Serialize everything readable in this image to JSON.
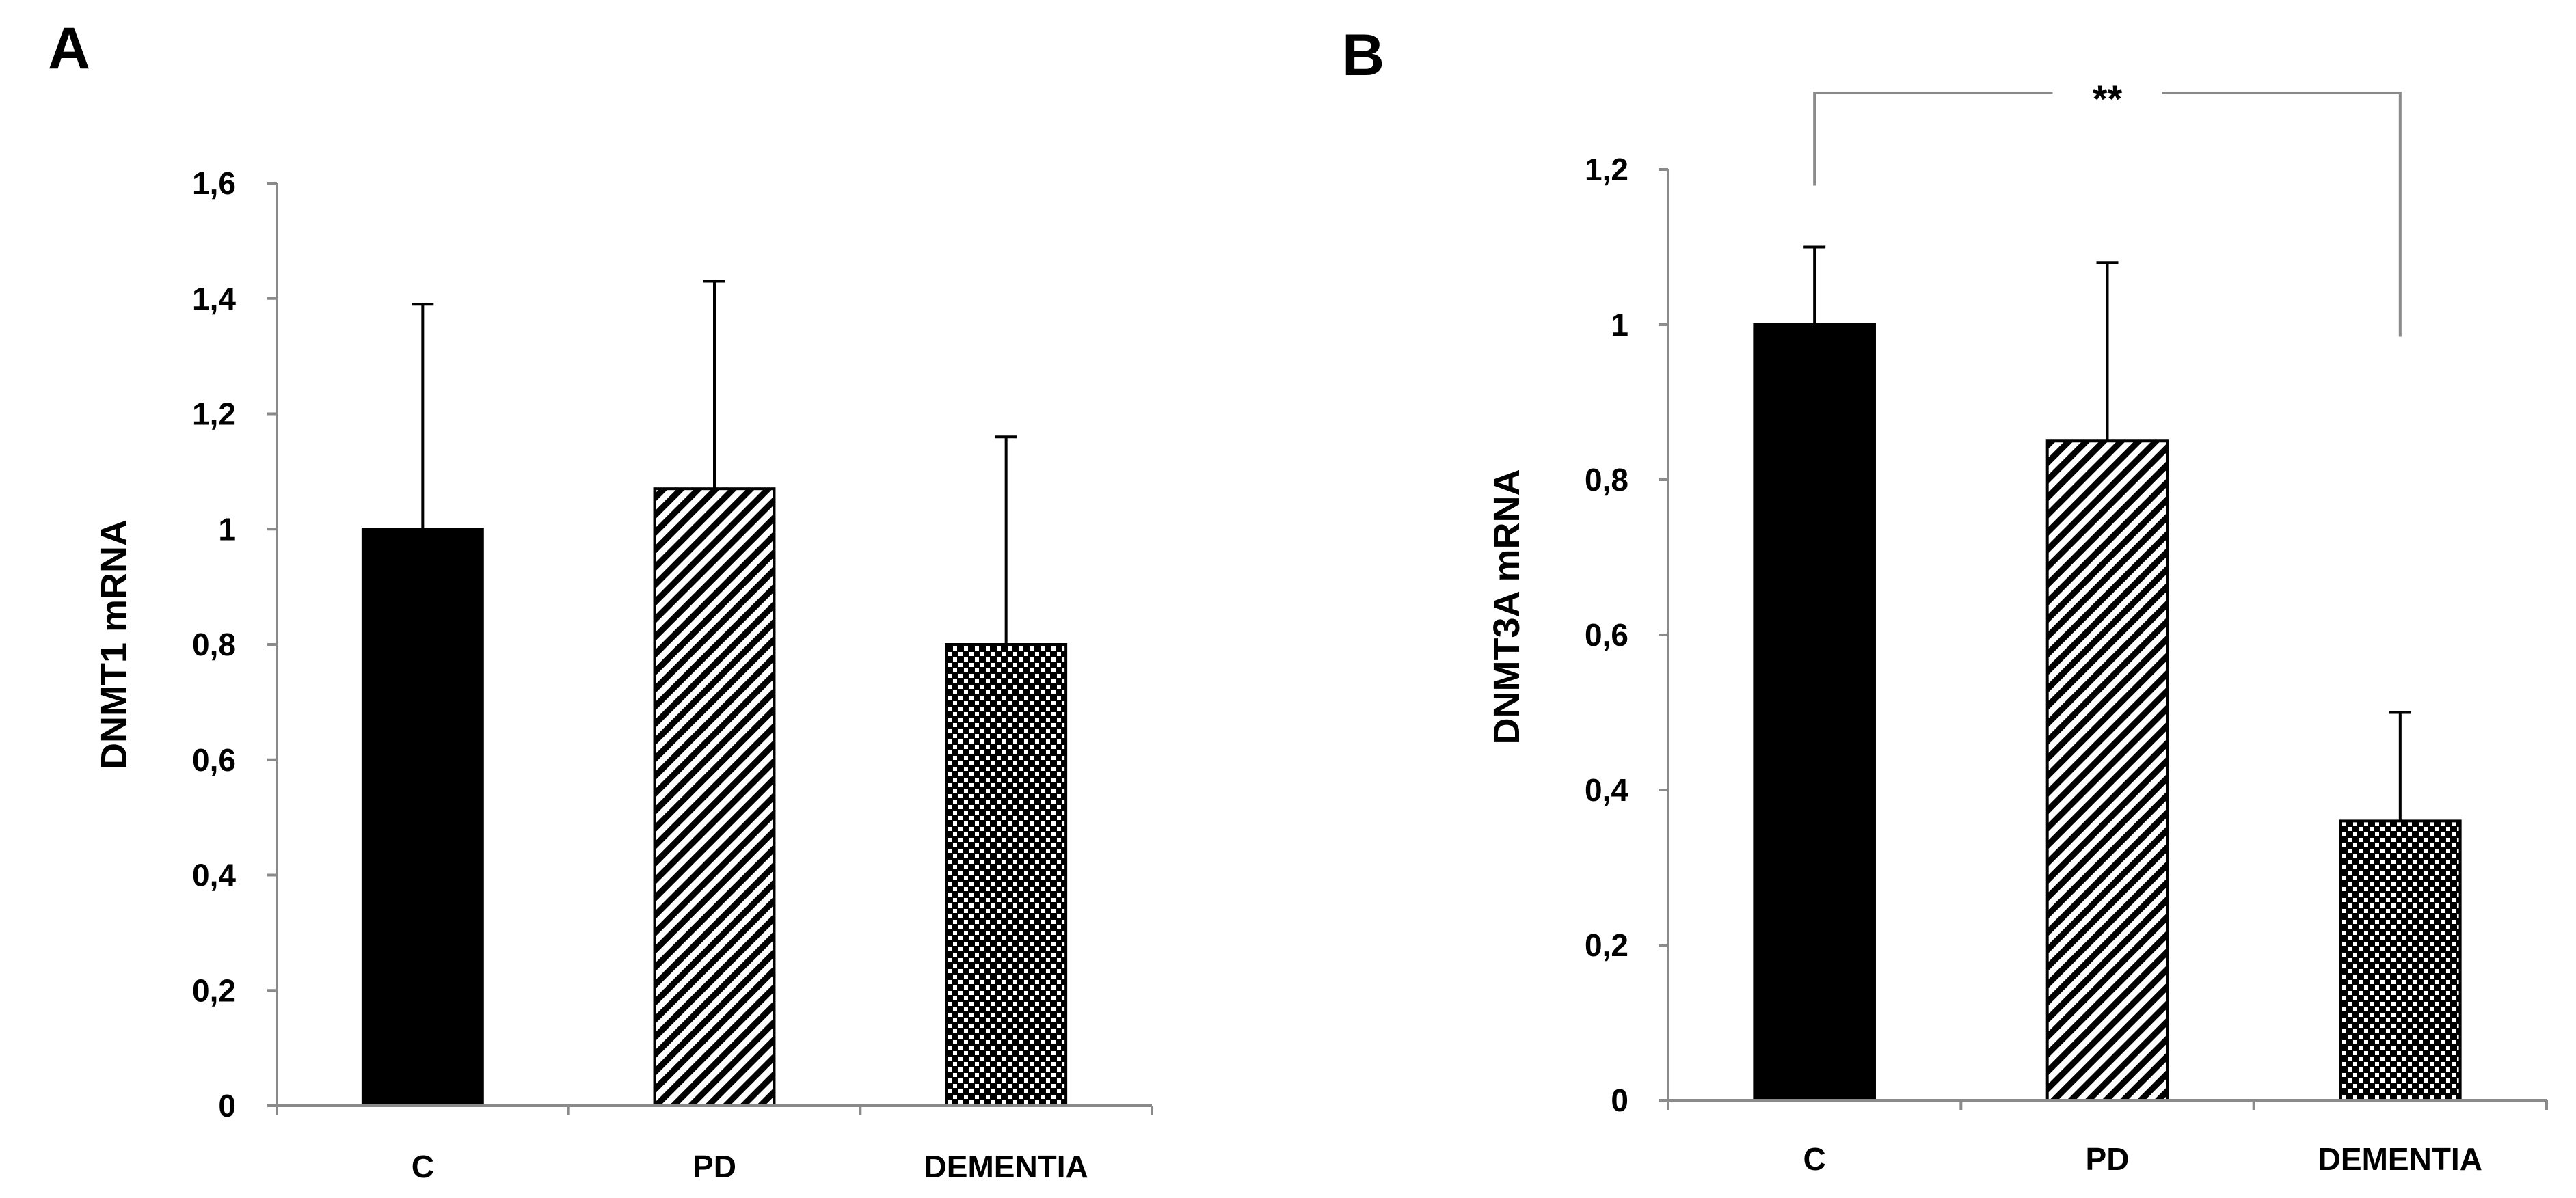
{
  "chart_data": [
    {
      "panel": "A",
      "type": "bar",
      "categories": [
        "C",
        "PD",
        "DEMENTIA"
      ],
      "values": [
        1.0,
        1.07,
        0.8
      ],
      "errors": [
        0.39,
        0.36,
        0.36
      ],
      "fills": [
        "solid",
        "diagonal-hatch",
        "checker"
      ],
      "ylabel": "DNMT1 mRNA",
      "xlabel": "",
      "ylim": [
        0,
        1.6
      ],
      "yticks": [
        0,
        0.2,
        0.4,
        0.6,
        0.8,
        1,
        1.2,
        1.4,
        1.6
      ],
      "ytick_labels": [
        "0",
        "0,2",
        "0,4",
        "0,6",
        "0,8",
        "1",
        "1,2",
        "1,4",
        "1,6"
      ],
      "grid": false,
      "significance": []
    },
    {
      "panel": "B",
      "type": "bar",
      "categories": [
        "C",
        "PD",
        "DEMENTIA"
      ],
      "values": [
        1.0,
        0.85,
        0.36
      ],
      "errors": [
        0.1,
        0.23,
        0.14
      ],
      "fills": [
        "solid",
        "diagonal-hatch",
        "checker"
      ],
      "ylabel": "DNMT3A mRNA",
      "xlabel": "",
      "ylim": [
        0,
        1.2
      ],
      "yticks": [
        0,
        0.2,
        0.4,
        0.6,
        0.8,
        1,
        1.2
      ],
      "ytick_labels": [
        "0",
        "0,2",
        "0,4",
        "0,6",
        "0,8",
        "1",
        "1,2"
      ],
      "grid": false,
      "significance": [
        {
          "from": "C",
          "to": "DEMENTIA",
          "label": "**"
        }
      ]
    }
  ],
  "colors": {
    "bar": "#000000",
    "axis": "#8a8a8a",
    "background": "#ffffff"
  }
}
